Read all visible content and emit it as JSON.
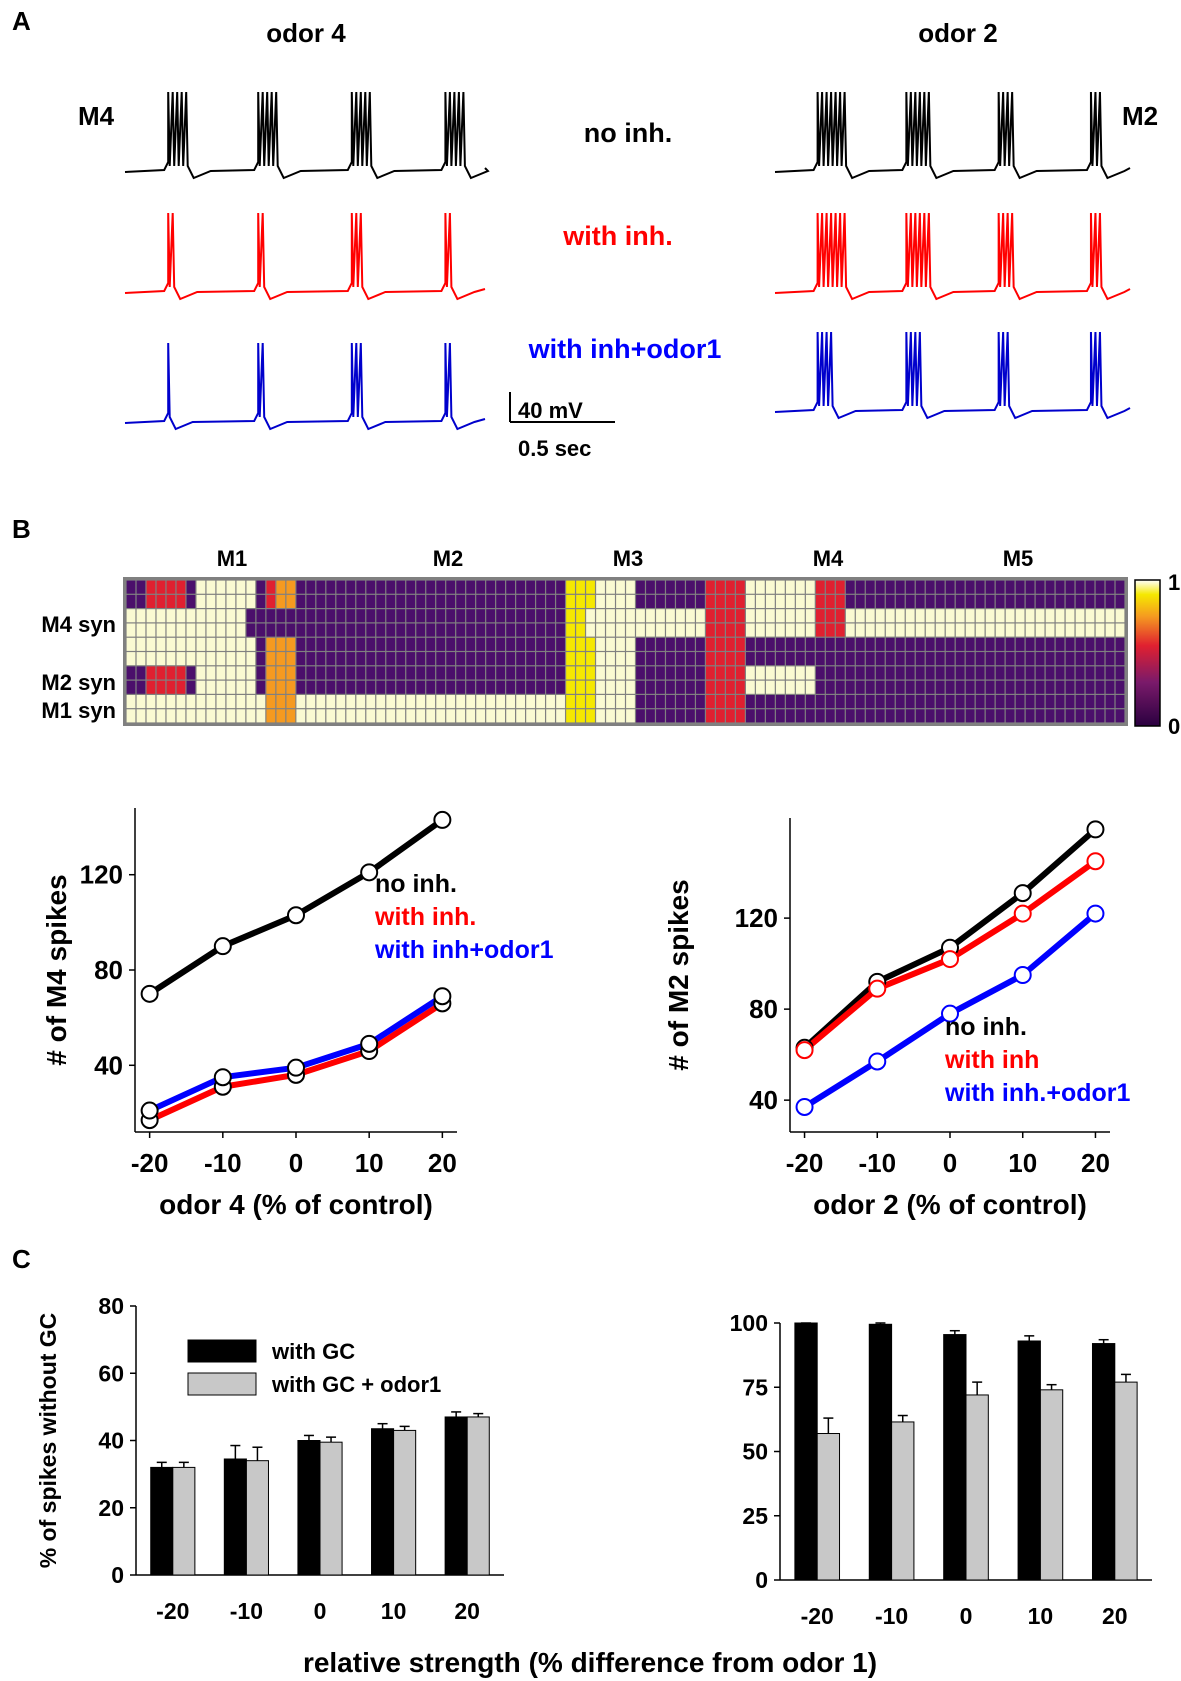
{
  "panels": {
    "a": "A",
    "b": "B",
    "c": "C"
  },
  "panel_a": {
    "left_title": "odor 4",
    "right_title": "odor 2",
    "left_cell": "M4",
    "right_cell": "M2",
    "conditions": [
      "no inh.",
      "with inh.",
      "with inh+odor1"
    ],
    "colors": [
      "#000000",
      "#ff0000",
      "#0000cc"
    ],
    "scale_voltage": "40 mV",
    "scale_time": "0.5 sec",
    "traces": [
      {
        "name": "odor4-no-inh",
        "bursts": [
          {
            "t": 0.12,
            "n": 5
          },
          {
            "t": 0.37,
            "n": 5
          },
          {
            "t": 0.63,
            "n": 5
          },
          {
            "t": 0.89,
            "n": 5
          }
        ]
      },
      {
        "name": "odor4-with-inh",
        "bursts": [
          {
            "t": 0.12,
            "n": 2
          },
          {
            "t": 0.37,
            "n": 2
          },
          {
            "t": 0.63,
            "n": 3
          },
          {
            "t": 0.89,
            "n": 2
          }
        ]
      },
      {
        "name": "odor4-with-inh-odor1",
        "bursts": [
          {
            "t": 0.12,
            "n": 1
          },
          {
            "t": 0.37,
            "n": 2
          },
          {
            "t": 0.63,
            "n": 3
          },
          {
            "t": 0.89,
            "n": 2
          }
        ]
      },
      {
        "name": "odor2-no-inh",
        "bursts": [
          {
            "t": 0.12,
            "n": 7
          },
          {
            "t": 0.37,
            "n": 6
          },
          {
            "t": 0.63,
            "n": 4
          },
          {
            "t": 0.89,
            "n": 3
          }
        ]
      },
      {
        "name": "odor2-with-inh",
        "bursts": [
          {
            "t": 0.12,
            "n": 7
          },
          {
            "t": 0.37,
            "n": 6
          },
          {
            "t": 0.63,
            "n": 4
          },
          {
            "t": 0.89,
            "n": 3
          }
        ]
      },
      {
        "name": "odor2-with-inh-odor1",
        "bursts": [
          {
            "t": 0.12,
            "n": 4
          },
          {
            "t": 0.37,
            "n": 4
          },
          {
            "t": 0.63,
            "n": 3
          },
          {
            "t": 0.89,
            "n": 3
          }
        ]
      }
    ]
  },
  "panel_b_raster": {
    "column_labels": [
      "M1",
      "M2",
      "M3",
      "M4",
      "M5"
    ],
    "row_labels": [
      "",
      "M4 syn",
      "",
      "M2 syn",
      "M1 syn"
    ],
    "colorbar": {
      "max_label": "1",
      "min_label": "0"
    },
    "colors": {
      "background": "#808080",
      "low": "#4b0f6b",
      "high": "#fafad2"
    }
  },
  "chart_data": [
    {
      "type": "line",
      "title": "",
      "xlabel": "odor 4 (% of control)",
      "ylabel": "# of M4 spikes",
      "x": [
        -20,
        -10,
        0,
        10,
        20
      ],
      "xlim": [
        -22,
        22
      ],
      "ylim": [
        12,
        148
      ],
      "yticks": [
        40,
        80,
        120
      ],
      "series": [
        {
          "name": "no inh.",
          "color": "#000000",
          "values": [
            70,
            90,
            103,
            121,
            143
          ]
        },
        {
          "name": "with inh.",
          "color": "#ff0000",
          "values": [
            17,
            31,
            36,
            46,
            66
          ]
        },
        {
          "name": "with inh+odor1",
          "color": "#0000ff",
          "values": [
            21,
            35,
            39,
            49,
            69
          ]
        }
      ]
    },
    {
      "type": "line",
      "title": "",
      "xlabel": "odor 2 (% of control)",
      "ylabel": "# of M2 spikes",
      "x": [
        -20,
        -10,
        0,
        10,
        20
      ],
      "xlim": [
        -22,
        22
      ],
      "ylim": [
        26,
        164
      ],
      "yticks": [
        40,
        80,
        120
      ],
      "series": [
        {
          "name": "no inh.",
          "color": "#000000",
          "values": [
            63,
            92,
            107,
            131,
            159
          ]
        },
        {
          "name": "with inh",
          "color": "#ff0000",
          "values": [
            62,
            89,
            102,
            122,
            145
          ]
        },
        {
          "name": "with inh.+odor1",
          "color": "#0000ff",
          "values": [
            37,
            57,
            78,
            95,
            122
          ]
        }
      ]
    },
    {
      "type": "bar",
      "title": "",
      "xlabel": "relative strength (% difference from odor 1)",
      "ylabel": "% of spikes without GC",
      "categories": [
        "-20",
        "-10",
        "0",
        "10",
        "20"
      ],
      "ylim": [
        0,
        80
      ],
      "yticks": [
        0,
        20,
        40,
        60,
        80
      ],
      "series": [
        {
          "name": "with GC",
          "color": "#000000",
          "values": [
            32,
            34.5,
            40,
            43.5,
            47
          ],
          "errors": [
            1.5,
            4,
            1.5,
            1.5,
            1.5
          ]
        },
        {
          "name": "with GC + odor1",
          "color": "#c8c8c8",
          "values": [
            32,
            34,
            39.5,
            43,
            47
          ],
          "errors": [
            1.5,
            4,
            1.5,
            1.2,
            1
          ]
        }
      ]
    },
    {
      "type": "bar",
      "title": "",
      "xlabel": "relative strength (% difference from odor 1)",
      "ylabel": "",
      "categories": [
        "-20",
        "-10",
        "0",
        "10",
        "20"
      ],
      "ylim": [
        0,
        100
      ],
      "yticks": [
        0,
        25,
        50,
        75,
        100
      ],
      "series": [
        {
          "name": "with GC",
          "color": "#000000",
          "values": [
            100,
            99.5,
            95.5,
            93,
            92
          ],
          "errors": [
            0,
            0.5,
            1.5,
            2,
            1.5
          ]
        },
        {
          "name": "with GC + odor1",
          "color": "#c8c8c8",
          "values": [
            57,
            61.5,
            72,
            74,
            77
          ],
          "errors": [
            6,
            2.5,
            5,
            2,
            3
          ]
        }
      ]
    }
  ],
  "panel_c": {
    "shared_xlabel": "relative strength (% difference from odor 1)"
  }
}
